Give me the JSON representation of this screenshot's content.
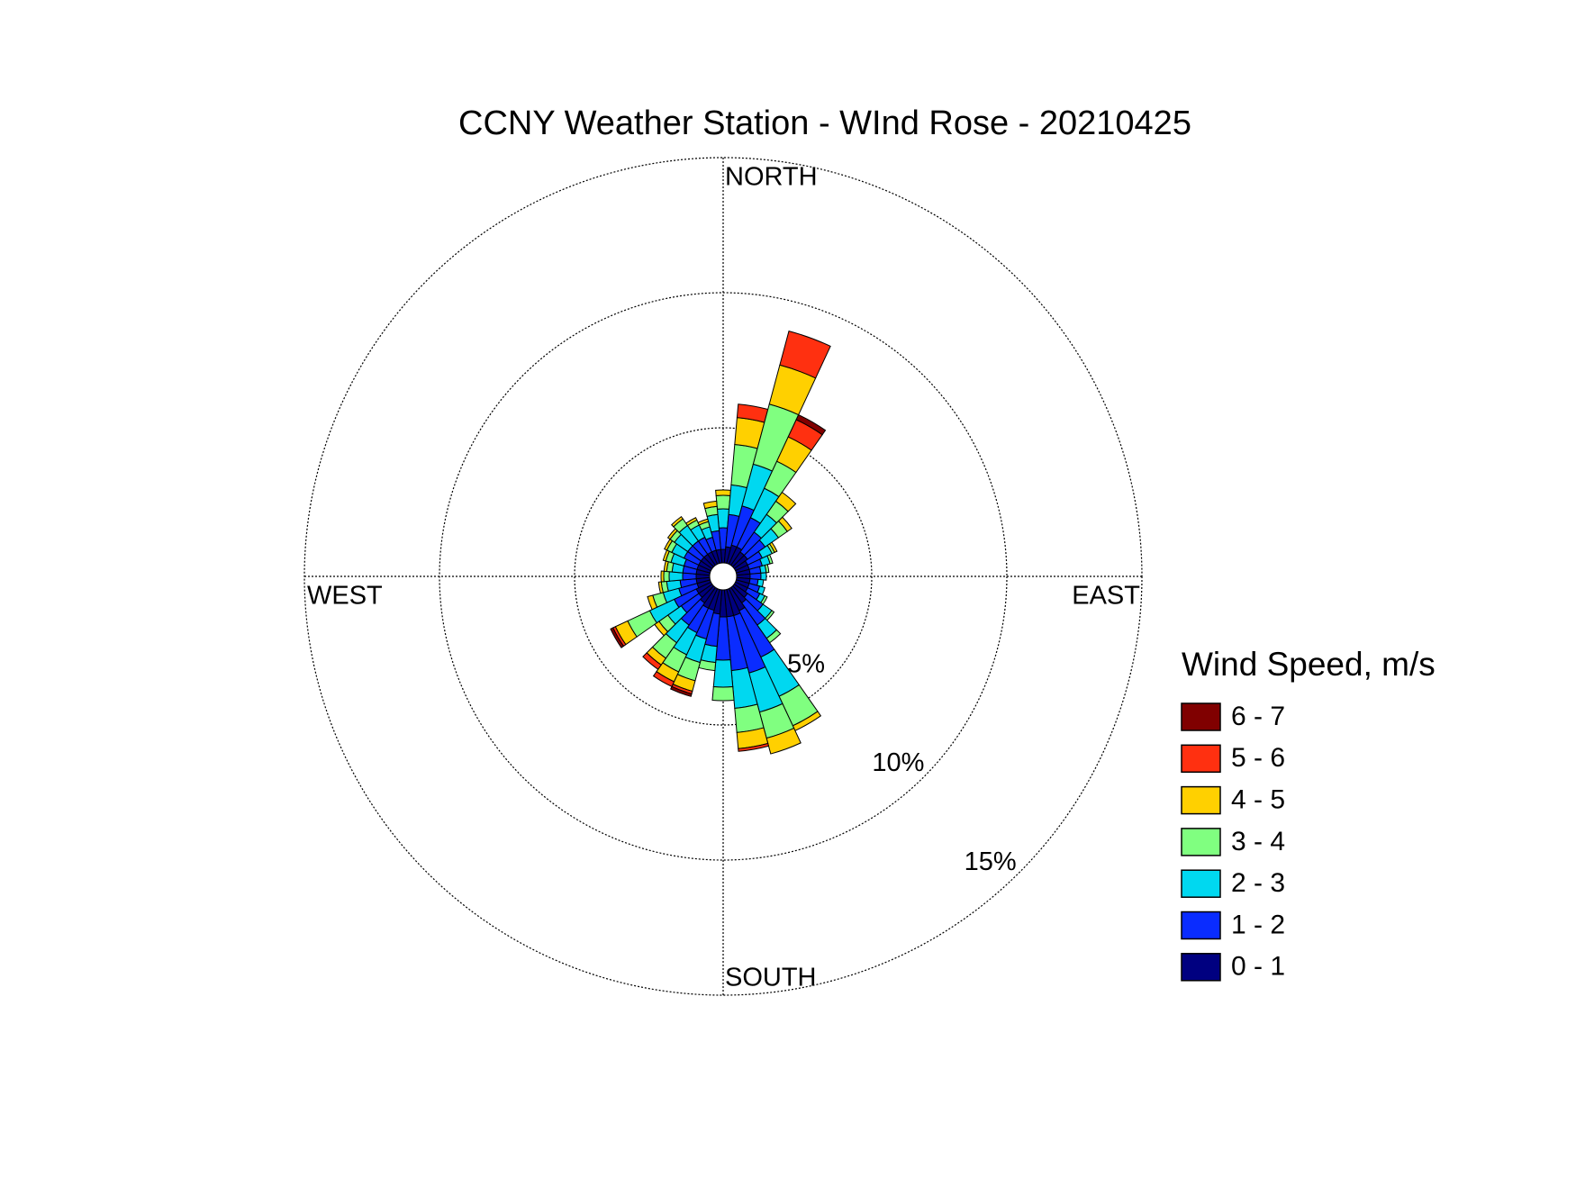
{
  "chart_data": {
    "type": "windrose",
    "title": "CCNY Weather Station - WInd Rose - 20210425",
    "direction_labels": [
      "NORTH",
      "EAST",
      "SOUTH",
      "WEST"
    ],
    "x": [
      0,
      10,
      20,
      30,
      40,
      50,
      60,
      70,
      80,
      90,
      100,
      110,
      120,
      130,
      140,
      150,
      160,
      170,
      180,
      190,
      200,
      210,
      220,
      230,
      240,
      250,
      260,
      270,
      280,
      290,
      300,
      310,
      320,
      330,
      340,
      350
    ],
    "rlim": [
      0,
      15
    ],
    "rticks": [
      {
        "value": 5,
        "label": "5%"
      },
      {
        "value": 10,
        "label": "10%"
      },
      {
        "value": 15,
        "label": "15%"
      }
    ],
    "grid": true,
    "legend_title": "Wind Speed, m/s",
    "legend_position": "right",
    "series": [
      {
        "name": "0 - 1",
        "color": "#000080",
        "values": [
          0.5,
          0.6,
          0.7,
          0.7,
          0.6,
          0.6,
          0.5,
          0.5,
          0.5,
          0.5,
          0.5,
          0.5,
          0.5,
          0.6,
          0.7,
          0.9,
          1.0,
          1.0,
          1.0,
          0.9,
          0.8,
          0.8,
          0.7,
          0.6,
          0.6,
          0.5,
          0.5,
          0.5,
          0.5,
          0.5,
          0.5,
          0.5,
          0.5,
          0.5,
          0.5,
          0.5
        ]
      },
      {
        "name": "1 - 2",
        "color": "#0a2cff",
        "values": [
          0.8,
          1.2,
          1.5,
          1.2,
          0.9,
          0.8,
          0.6,
          0.5,
          0.4,
          0.4,
          0.3,
          0.4,
          0.5,
          0.7,
          1.0,
          1.9,
          2.2,
          2.0,
          1.6,
          1.2,
          1.1,
          1.0,
          1.0,
          0.8,
          0.9,
          0.7,
          0.6,
          0.5,
          0.5,
          0.5,
          0.6,
          0.6,
          0.6,
          0.6,
          0.5,
          0.7
        ]
      },
      {
        "name": "2 - 3",
        "color": "#00d8f0",
        "values": [
          0.7,
          1.1,
          1.6,
          1.2,
          0.8,
          0.6,
          0.4,
          0.3,
          0.2,
          0.2,
          0.2,
          0.2,
          0.2,
          0.4,
          0.6,
          1.6,
          1.5,
          1.4,
          1.0,
          0.6,
          0.9,
          0.9,
          0.8,
          0.6,
          1.0,
          0.6,
          0.5,
          0.5,
          0.4,
          0.5,
          0.5,
          0.6,
          0.7,
          0.5,
          0.4,
          0.6
        ]
      },
      {
        "name": "3 - 4",
        "color": "#80ff80",
        "values": [
          0.5,
          1.5,
          2.3,
          1.1,
          0.6,
          0.4,
          0.1,
          0.1,
          0.1,
          0,
          0,
          0,
          0.1,
          0.1,
          0.2,
          1.2,
          1.0,
          0.9,
          0.5,
          0.3,
          0.7,
          0.7,
          0.7,
          0.4,
          0.9,
          0.4,
          0.2,
          0.2,
          0.2,
          0.2,
          0.2,
          0.2,
          0.3,
          0.2,
          0.2,
          0.3
        ]
      },
      {
        "name": "4 - 5",
        "color": "#ffd000",
        "values": [
          0.2,
          1.0,
          1.5,
          1.0,
          0.4,
          0.2,
          0.1,
          0,
          0,
          0,
          0,
          0,
          0,
          0,
          0,
          0.2,
          0.6,
          0.6,
          0,
          0,
          0.4,
          0.4,
          0.3,
          0.2,
          0.5,
          0.2,
          0.1,
          0.1,
          0.1,
          0.1,
          0.1,
          0.1,
          0.1,
          0.1,
          0.1,
          0.2
        ]
      },
      {
        "name": "5 - 6",
        "color": "#ff3010",
        "values": [
          0,
          0.5,
          1.3,
          0.7,
          0,
          0,
          0,
          0,
          0,
          0,
          0,
          0,
          0,
          0,
          0,
          0,
          0,
          0.1,
          0,
          0,
          0.1,
          0.2,
          0.2,
          0,
          0.1,
          0,
          0,
          0,
          0,
          0,
          0,
          0,
          0,
          0,
          0,
          0
        ]
      },
      {
        "name": "6 - 7",
        "color": "#800000",
        "values": [
          0,
          0,
          0,
          0.2,
          0,
          0,
          0,
          0,
          0,
          0,
          0,
          0,
          0,
          0,
          0,
          0,
          0,
          0,
          0,
          0,
          0.1,
          0,
          0,
          0,
          0.1,
          0,
          0,
          0,
          0,
          0,
          0,
          0,
          0,
          0,
          0,
          0
        ]
      }
    ]
  }
}
